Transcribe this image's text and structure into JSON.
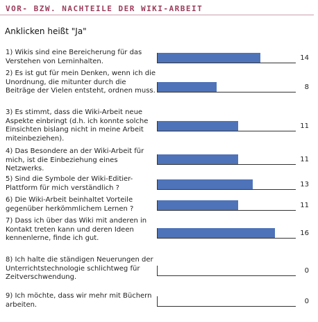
{
  "header": {
    "title": "VOR- BZW. NACHTEILE DER WIKI-ARBEIT",
    "subtitle": "Anklicken heißt \"Ja\""
  },
  "colors": {
    "bar": "#4f73b8",
    "title": "#9b3b5a"
  },
  "chart_data": {
    "type": "bar",
    "orientation": "horizontal",
    "title": "VOR- BZW. NACHTEILE DER WIKI-ARBEIT",
    "subtitle": "Anklicken heißt \"Ja\"",
    "xlim": [
      0,
      16
    ],
    "grid": false,
    "categories": [
      "1) Wikis sind eine Bereicherung für das Verstehen von Lerninhalten.",
      "2) Es ist gut für mein Denken, wenn ich die Unordnung, die mitunter durch die Beiträge der Vielen entsteht, ordnen muss.",
      "3) Es stimmt, dass die Wiki-Arbeit neue Aspekte einbringt (d.h. ich konnte solche Einsichten bislang nicht in meine Arbeit miteinbeziehen).",
      "4) Das Besondere an der Wiki-Arbeit für mich, ist die Einbeziehung eines Netzwerks.",
      "5) Sind die Symbole der Wiki-Editier-Plattform für mich verständlich ?",
      "6) Die Wiki-Arbeit beinhaltet Vorteile gegenüber herkömmlichem Lernen ?",
      "7) Dass ich über das Wiki mit anderen in Kontakt treten kann und deren Ideen kennenlerne, finde ich gut.",
      "8) Ich halte die ständigen Neuerungen der Unterrichtstechnologie schlichtweg für Zeitverschwendung.",
      "9) Ich möchte, dass wir mehr mit Büchern arbeiten."
    ],
    "values": [
      14,
      8,
      11,
      11,
      13,
      11,
      16,
      0,
      0
    ]
  }
}
